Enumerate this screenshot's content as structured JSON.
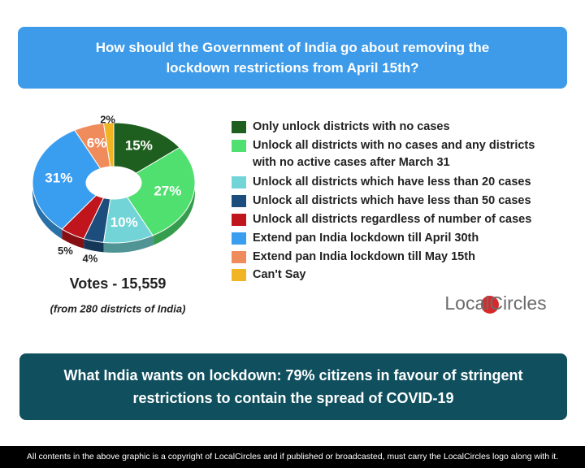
{
  "header": {
    "title": "How should the Government of India go about removing the lockdown restrictions from April 15th?"
  },
  "chart_data": {
    "type": "pie",
    "donut": true,
    "categories": [
      "Only unlock districts with no cases",
      "Unlock all districts with no cases and any districts with no active cases after March 31",
      "Unlock all districts which have less than 20 cases",
      "Unlock all districts which have less than 50 cases",
      "Unlock all districts regardless of number of cases",
      "Extend pan India lockdown till April 30th",
      "Extend pan India lockdown till May 15th",
      "Can't Say"
    ],
    "values": [
      15,
      27,
      10,
      4,
      5,
      31,
      6,
      2
    ],
    "value_labels": [
      "15%",
      "27%",
      "10%",
      "4%",
      "5%",
      "31%",
      "6%",
      "2%"
    ],
    "colors": [
      "#1e5f1f",
      "#4fe06f",
      "#72d4d6",
      "#1d4d7c",
      "#c0151c",
      "#3a9ef0",
      "#f08b5c",
      "#f0b424"
    ],
    "annotations": [
      "Votes - 15,559",
      "(from 280 districts of India)"
    ]
  },
  "logo": "LocalCircles",
  "footer_banner": "What India wants on lockdown: 79% citizens in favour of stringent restrictions to contain the spread of COVID-19",
  "copyright": "All contents in the above graphic is a copyright of LocalCircles and if published or broadcasted, must carry the LocalCircles logo along with it."
}
